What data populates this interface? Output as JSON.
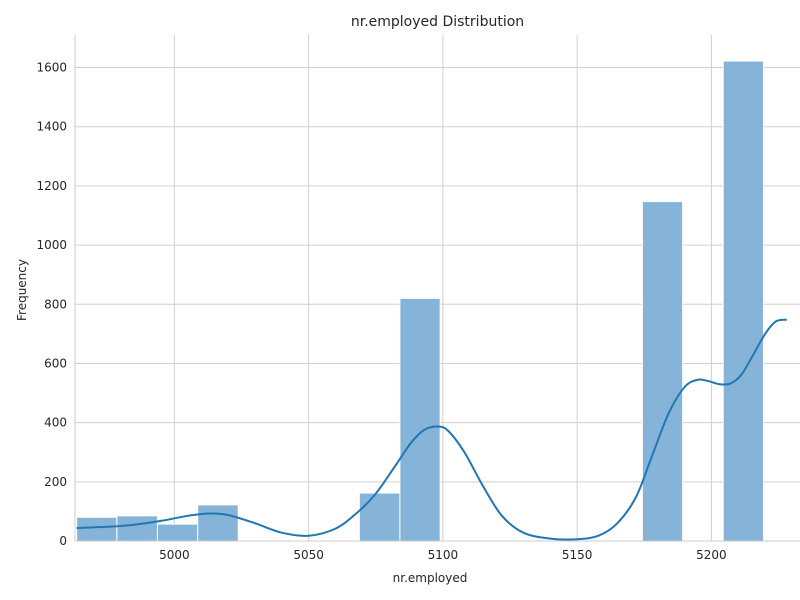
{
  "chart_data": {
    "type": "bar",
    "title": "nr.employed Distribution",
    "xlabel": "nr.employed",
    "ylabel": "Frequency",
    "xlim": [
      4963,
      5233
    ],
    "ylim": [
      0,
      1710
    ],
    "xticks": [
      5000,
      5050,
      5100,
      5150,
      5200
    ],
    "yticks": [
      0,
      200,
      400,
      600,
      800,
      1000,
      1200,
      1400,
      1600
    ],
    "grid": true,
    "bar_color": "#86b4d8",
    "kde_color": "#1f77b4",
    "bins": [
      {
        "x0": 4963.6,
        "x1": 4978.6,
        "count": 80
      },
      {
        "x0": 4978.6,
        "x1": 4993.7,
        "count": 85
      },
      {
        "x0": 4993.7,
        "x1": 5008.7,
        "count": 57
      },
      {
        "x0": 5008.7,
        "x1": 5023.8,
        "count": 122
      },
      {
        "x0": 5023.8,
        "x1": 5038.8,
        "count": 0
      },
      {
        "x0": 5038.8,
        "x1": 5053.9,
        "count": 0
      },
      {
        "x0": 5053.9,
        "x1": 5068.9,
        "count": 0
      },
      {
        "x0": 5068.9,
        "x1": 5084.0,
        "count": 162
      },
      {
        "x0": 5084.0,
        "x1": 5099.0,
        "count": 820
      },
      {
        "x0": 5099.0,
        "x1": 5114.1,
        "count": 0
      },
      {
        "x0": 5114.1,
        "x1": 5129.1,
        "count": 0
      },
      {
        "x0": 5129.1,
        "x1": 5144.2,
        "count": 0
      },
      {
        "x0": 5144.2,
        "x1": 5159.2,
        "count": 0
      },
      {
        "x0": 5159.2,
        "x1": 5174.3,
        "count": 0
      },
      {
        "x0": 5174.3,
        "x1": 5189.3,
        "count": 1147
      },
      {
        "x0": 5189.3,
        "x1": 5204.4,
        "count": 0
      },
      {
        "x0": 5204.4,
        "x1": 5219.4,
        "count": 1622
      },
      {
        "x0": 5219.4,
        "x1": 5228.1,
        "count": 0
      }
    ],
    "kde": {
      "x": [
        4963.6,
        4975,
        4985,
        4995,
        5005,
        5013,
        5020,
        5030,
        5040,
        5050,
        5060,
        5068,
        5075,
        5082,
        5088,
        5093,
        5098,
        5102,
        5108,
        5115,
        5122,
        5130,
        5140,
        5150,
        5158,
        5165,
        5172,
        5178,
        5184,
        5190,
        5195,
        5199,
        5203,
        5207,
        5211,
        5215,
        5220,
        5224,
        5228.1
      ],
      "y": [
        44,
        48,
        55,
        68,
        85,
        93,
        88,
        60,
        28,
        18,
        42,
        95,
        160,
        250,
        330,
        375,
        387,
        372,
        300,
        185,
        85,
        28,
        8,
        6,
        18,
        60,
        150,
        290,
        430,
        520,
        545,
        540,
        530,
        532,
        560,
        620,
        700,
        742,
        748
      ]
    }
  }
}
